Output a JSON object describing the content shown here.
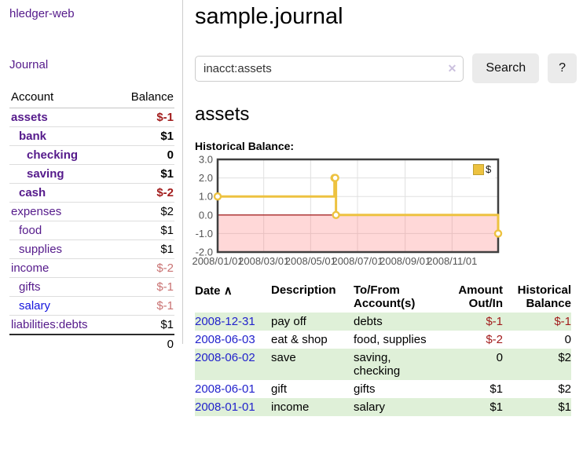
{
  "app": {
    "brand": "hledger-web"
  },
  "sidebar": {
    "journal_link": "Journal",
    "table": {
      "account_header": "Account",
      "balance_header": "Balance",
      "accounts": [
        {
          "name": "assets",
          "indent": 1,
          "bold": true,
          "color": "purple",
          "balance": "$-1",
          "balance_color": "negative"
        },
        {
          "name": "bank",
          "indent": 2,
          "bold": true,
          "color": "purple",
          "balance": "$1",
          "balance_color": "normal"
        },
        {
          "name": "checking",
          "indent": 3,
          "bold": true,
          "color": "purple",
          "balance": "0",
          "balance_color": "normal"
        },
        {
          "name": "saving",
          "indent": 3,
          "bold": true,
          "color": "purple",
          "balance": "$1",
          "balance_color": "normal"
        },
        {
          "name": "cash",
          "indent": 2,
          "bold": true,
          "color": "purple",
          "balance": "$-2",
          "balance_color": "negative"
        },
        {
          "name": "expenses",
          "indent": 1,
          "bold": false,
          "color": "purple",
          "balance": "$2",
          "balance_color": "normal"
        },
        {
          "name": "food",
          "indent": 2,
          "bold": false,
          "color": "purple",
          "balance": "$1",
          "balance_color": "normal"
        },
        {
          "name": "supplies",
          "indent": 2,
          "bold": false,
          "color": "purple",
          "balance": "$1",
          "balance_color": "normal"
        },
        {
          "name": "income",
          "indent": 1,
          "bold": false,
          "color": "purple",
          "balance": "$-2",
          "balance_color": "negative-light"
        },
        {
          "name": "gifts",
          "indent": 2,
          "bold": false,
          "color": "purple",
          "balance": "$-1",
          "balance_color": "negative-light"
        },
        {
          "name": "salary",
          "indent": 2,
          "bold": false,
          "color": "blue",
          "balance": "$-1",
          "balance_color": "negative-light"
        },
        {
          "name": "liabilities:debts",
          "indent": 1,
          "bold": false,
          "color": "purple",
          "balance": "$1",
          "balance_color": "normal"
        }
      ],
      "total": "0"
    }
  },
  "header": {
    "title": "sample.journal"
  },
  "search": {
    "value": "inacct:assets",
    "clear_icon": "✕",
    "search_button": "Search",
    "help_button": "?"
  },
  "account_page": {
    "title": "assets",
    "chart_heading": "Historical Balance:"
  },
  "chart_data": {
    "type": "line",
    "step": true,
    "title": "Historical Balance",
    "series": [
      {
        "name": "$",
        "color": "#EDC240",
        "points": [
          {
            "date": "2008-01-01",
            "day": 0,
            "value": 1
          },
          {
            "date": "2008-06-01",
            "day": 152,
            "value": 2
          },
          {
            "date": "2008-06-02",
            "day": 153,
            "value": 2
          },
          {
            "date": "2008-06-03",
            "day": 154,
            "value": 0
          },
          {
            "date": "2008-12-31",
            "day": 365,
            "value": -1
          }
        ]
      }
    ],
    "x_range_days": [
      0,
      365
    ],
    "x_ticks": [
      {
        "day": 0,
        "label": "2008/01/01"
      },
      {
        "day": 60,
        "label": "2008/03/01"
      },
      {
        "day": 121,
        "label": "2008/05/01"
      },
      {
        "day": 182,
        "label": "2008/07/01"
      },
      {
        "day": 244,
        "label": "2008/09/01"
      },
      {
        "day": 305,
        "label": "2008/11/01"
      }
    ],
    "y_ticks": [
      {
        "value": 3,
        "label": "3.0"
      },
      {
        "value": 2,
        "label": "2.0"
      },
      {
        "value": 1,
        "label": "1.0"
      },
      {
        "value": 0,
        "label": "0.0"
      },
      {
        "value": -1,
        "label": "-1.0"
      },
      {
        "value": -2,
        "label": "-2.0"
      }
    ],
    "ylim": [
      -2,
      3
    ],
    "legend": {
      "label": "$",
      "position": "top-right"
    },
    "grid": true,
    "colors": {
      "line": "#EDC240",
      "marker_fill": "#ffffff",
      "negative_region": "rgba(255,115,115,0.28)",
      "zero_line": "#990000",
      "grid": "#e0e0e0",
      "border": "#3f3f3f",
      "tick_text": "#545454"
    }
  },
  "register": {
    "sort_icon": "∧",
    "columns": [
      {
        "label": "Date",
        "align": "left"
      },
      {
        "label": "Description",
        "align": "left"
      },
      {
        "label": "To/From Account(s)",
        "align": "left"
      },
      {
        "label": "Amount Out/In",
        "align": "right"
      },
      {
        "label": "Historical Balance",
        "align": "right"
      }
    ],
    "rows": [
      {
        "date": "2008-12-31",
        "description": "pay off",
        "accounts": "debts",
        "amount": "$-1",
        "amount_negative": true,
        "balance": "$-1",
        "balance_negative": true,
        "shaded": true
      },
      {
        "date": "2008-06-03",
        "description": "eat & shop",
        "accounts": "food, supplies",
        "amount": "$-2",
        "amount_negative": true,
        "balance": "0",
        "balance_negative": false,
        "shaded": false
      },
      {
        "date": "2008-06-02",
        "description": "save",
        "accounts": "saving, checking",
        "amount": "0",
        "amount_negative": false,
        "balance": "$2",
        "balance_negative": false,
        "shaded": true
      },
      {
        "date": "2008-06-01",
        "description": "gift",
        "accounts": "gifts",
        "amount": "$1",
        "amount_negative": false,
        "balance": "$2",
        "balance_negative": false,
        "shaded": false
      },
      {
        "date": "2008-01-01",
        "description": "income",
        "accounts": "salary",
        "amount": "$1",
        "amount_negative": false,
        "balance": "$1",
        "balance_negative": false,
        "shaded": true
      }
    ]
  }
}
